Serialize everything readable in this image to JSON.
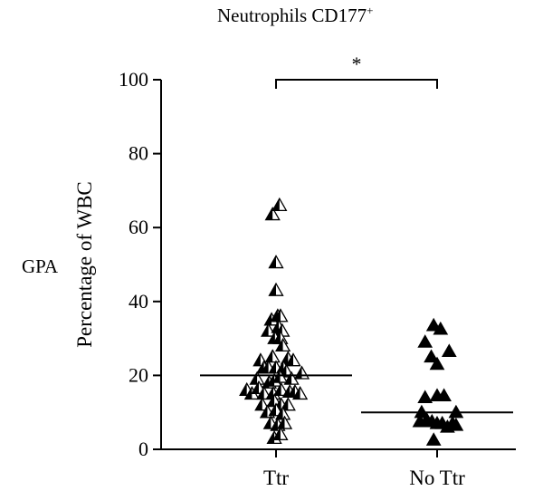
{
  "side_label": "GPA",
  "chart_data": {
    "type": "scatter",
    "title": "Neutrophils CD177",
    "title_superscript": "+",
    "xlabel": "",
    "ylabel": "Percentage of WBC",
    "ylim": [
      0,
      100
    ],
    "yticks": [
      0,
      20,
      40,
      60,
      80,
      100
    ],
    "categories": [
      "Ttr",
      "No Ttr"
    ],
    "significance": {
      "between": [
        "Ttr",
        "No Ttr"
      ],
      "label": "*"
    },
    "series": [
      {
        "category": "Ttr",
        "marker": "half-filled triangle",
        "median": 20,
        "points": [
          {
            "x": -0.1,
            "y": 63.5
          },
          {
            "x": 0.1,
            "y": 66
          },
          {
            "x": 0.0,
            "y": 50.5
          },
          {
            "x": 0.0,
            "y": 43
          },
          {
            "x": -0.13,
            "y": 35
          },
          {
            "x": 0.05,
            "y": 36
          },
          {
            "x": 0.13,
            "y": 36
          },
          {
            "x": -0.22,
            "y": 32
          },
          {
            "x": 0.08,
            "y": 33
          },
          {
            "x": 0.18,
            "y": 32
          },
          {
            "x": -0.03,
            "y": 30
          },
          {
            "x": 0.13,
            "y": 30
          },
          {
            "x": 0.2,
            "y": 28
          },
          {
            "x": -0.45,
            "y": 24
          },
          {
            "x": -0.1,
            "y": 25
          },
          {
            "x": 0.35,
            "y": 24.5
          },
          {
            "x": 0.5,
            "y": 24
          },
          {
            "x": -0.35,
            "y": 22
          },
          {
            "x": -0.22,
            "y": 22
          },
          {
            "x": 0.0,
            "y": 22
          },
          {
            "x": 0.22,
            "y": 22
          },
          {
            "x": 0.3,
            "y": 21
          },
          {
            "x": 0.45,
            "y": 19
          },
          {
            "x": 0.75,
            "y": 20.5
          },
          {
            "x": -0.55,
            "y": 19
          },
          {
            "x": -0.2,
            "y": 18
          },
          {
            "x": -0.05,
            "y": 18.5
          },
          {
            "x": 0.12,
            "y": 19.5
          },
          {
            "x": -0.85,
            "y": 16
          },
          {
            "x": -0.7,
            "y": 15
          },
          {
            "x": -0.5,
            "y": 16.5
          },
          {
            "x": -0.35,
            "y": 15
          },
          {
            "x": -0.08,
            "y": 15
          },
          {
            "x": 0.15,
            "y": 16
          },
          {
            "x": 0.4,
            "y": 15.5
          },
          {
            "x": 0.55,
            "y": 15.5
          },
          {
            "x": 0.7,
            "y": 15
          },
          {
            "x": -0.4,
            "y": 12
          },
          {
            "x": -0.05,
            "y": 13
          },
          {
            "x": 0.15,
            "y": 12
          },
          {
            "x": 0.35,
            "y": 12
          },
          {
            "x": -0.25,
            "y": 10
          },
          {
            "x": 0.0,
            "y": 10.5
          },
          {
            "x": 0.2,
            "y": 9.5
          },
          {
            "x": -0.15,
            "y": 7
          },
          {
            "x": 0.05,
            "y": 6.5
          },
          {
            "x": 0.25,
            "y": 7
          },
          {
            "x": -0.05,
            "y": 3
          },
          {
            "x": 0.13,
            "y": 4
          }
        ]
      },
      {
        "category": "No Ttr",
        "marker": "filled triangle",
        "median": 10,
        "points": [
          {
            "x": -0.1,
            "y": 33.5
          },
          {
            "x": 0.1,
            "y": 32.5
          },
          {
            "x": -0.35,
            "y": 29
          },
          {
            "x": 0.35,
            "y": 26.5
          },
          {
            "x": -0.17,
            "y": 25
          },
          {
            "x": 0.0,
            "y": 23
          },
          {
            "x": -0.35,
            "y": 14
          },
          {
            "x": 0.0,
            "y": 14.5
          },
          {
            "x": 0.2,
            "y": 14.5
          },
          {
            "x": -0.45,
            "y": 10
          },
          {
            "x": 0.55,
            "y": 10
          },
          {
            "x": -0.3,
            "y": 8
          },
          {
            "x": -0.15,
            "y": 7.5
          },
          {
            "x": 0.0,
            "y": 7
          },
          {
            "x": 0.15,
            "y": 7
          },
          {
            "x": 0.3,
            "y": 6
          },
          {
            "x": 0.45,
            "y": 7
          },
          {
            "x": 0.55,
            "y": 6.5
          },
          {
            "x": -0.5,
            "y": 7.5
          },
          {
            "x": -0.1,
            "y": 2.5
          }
        ]
      }
    ],
    "grid": false,
    "legend": "none"
  }
}
